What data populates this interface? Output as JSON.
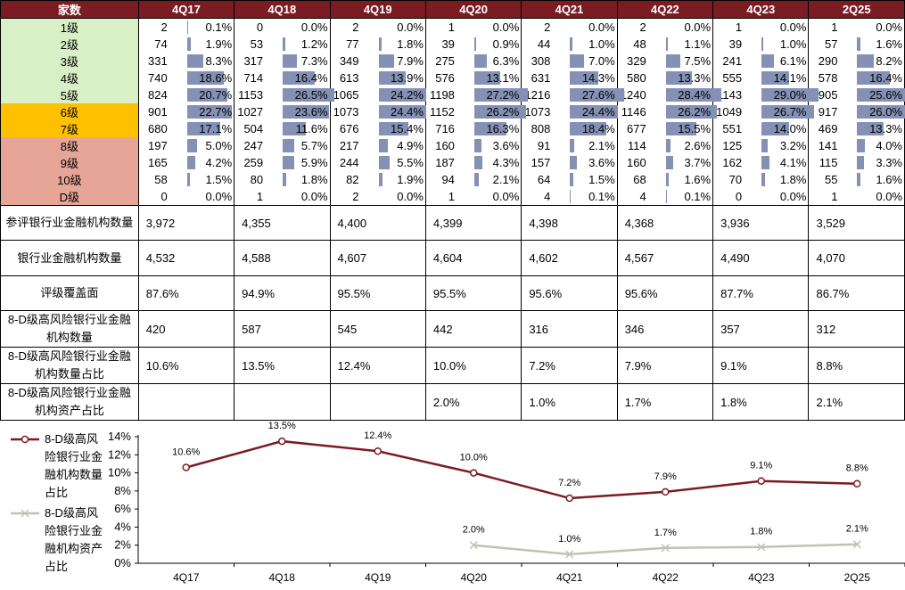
{
  "header": {
    "corner": "家数",
    "periods": [
      "4Q17",
      "4Q18",
      "4Q19",
      "4Q20",
      "4Q21",
      "4Q22",
      "4Q23",
      "2Q25"
    ]
  },
  "levels": [
    {
      "label": "1级",
      "color": "g",
      "counts": [
        2,
        0,
        2,
        1,
        2,
        2,
        1,
        1
      ],
      "pcts": [
        "0.1%",
        "0.0%",
        "0.0%",
        "0.0%",
        "0.0%",
        "0.0%",
        "0.0%",
        "0.0%"
      ],
      "fr": [
        0.1,
        0.0,
        0.0,
        0.0,
        0.0,
        0.0,
        0.0,
        0.0
      ]
    },
    {
      "label": "2级",
      "color": "g",
      "counts": [
        74,
        53,
        77,
        39,
        44,
        48,
        39,
        57
      ],
      "pcts": [
        "1.9%",
        "1.2%",
        "1.8%",
        "0.9%",
        "1.0%",
        "1.1%",
        "1.0%",
        "1.6%"
      ],
      "fr": [
        1.9,
        1.2,
        1.8,
        0.9,
        1.0,
        1.1,
        1.0,
        1.6
      ]
    },
    {
      "label": "3级",
      "color": "g",
      "counts": [
        331,
        317,
        349,
        275,
        308,
        329,
        241,
        290
      ],
      "pcts": [
        "8.3%",
        "7.3%",
        "7.9%",
        "6.3%",
        "7.0%",
        "7.5%",
        "6.1%",
        "8.2%"
      ],
      "fr": [
        8.3,
        7.3,
        7.9,
        6.3,
        7.0,
        7.5,
        6.1,
        8.2
      ]
    },
    {
      "label": "4级",
      "color": "g",
      "counts": [
        740,
        714,
        613,
        576,
        631,
        580,
        555,
        578
      ],
      "pcts": [
        "18.6%",
        "16.4%",
        "13.9%",
        "13.1%",
        "14.3%",
        "13.3%",
        "14.1%",
        "16.4%"
      ],
      "fr": [
        18.6,
        16.4,
        13.9,
        13.1,
        14.3,
        13.3,
        14.1,
        16.4
      ]
    },
    {
      "label": "5级",
      "color": "g",
      "counts": [
        824,
        1153,
        1065,
        1198,
        1216,
        1240,
        1143,
        905
      ],
      "pcts": [
        "20.7%",
        "26.5%",
        "24.2%",
        "27.2%",
        "27.6%",
        "28.4%",
        "29.0%",
        "25.6%"
      ],
      "fr": [
        20.7,
        26.5,
        24.2,
        27.2,
        27.6,
        28.4,
        29.0,
        25.6
      ]
    },
    {
      "label": "6级",
      "color": "y",
      "counts": [
        901,
        1027,
        1073,
        1152,
        1073,
        1146,
        1049,
        917
      ],
      "pcts": [
        "22.7%",
        "23.6%",
        "24.4%",
        "26.2%",
        "24.4%",
        "26.2%",
        "26.7%",
        "26.0%"
      ],
      "fr": [
        22.7,
        23.6,
        24.4,
        26.2,
        24.4,
        26.2,
        26.7,
        26.0
      ]
    },
    {
      "label": "7级",
      "color": "y",
      "counts": [
        680,
        504,
        676,
        716,
        808,
        677,
        551,
        469
      ],
      "pcts": [
        "17.1%",
        "11.6%",
        "15.4%",
        "16.3%",
        "18.4%",
        "15.5%",
        "14.0%",
        "13.3%"
      ],
      "fr": [
        17.1,
        11.6,
        15.4,
        16.3,
        18.4,
        15.5,
        14.0,
        13.3
      ]
    },
    {
      "label": "8级",
      "color": "r",
      "counts": [
        197,
        247,
        217,
        160,
        91,
        114,
        125,
        141
      ],
      "pcts": [
        "5.0%",
        "5.7%",
        "4.9%",
        "3.6%",
        "2.1%",
        "2.6%",
        "3.2%",
        "4.0%"
      ],
      "fr": [
        5.0,
        5.7,
        4.9,
        3.6,
        2.1,
        2.6,
        3.2,
        4.0
      ]
    },
    {
      "label": "9级",
      "color": "r",
      "counts": [
        165,
        259,
        244,
        187,
        157,
        160,
        162,
        115
      ],
      "pcts": [
        "4.2%",
        "5.9%",
        "5.5%",
        "4.3%",
        "3.6%",
        "3.7%",
        "4.1%",
        "3.3%"
      ],
      "fr": [
        4.2,
        5.9,
        5.5,
        4.3,
        3.6,
        3.7,
        4.1,
        3.3
      ]
    },
    {
      "label": "10级",
      "color": "r",
      "counts": [
        58,
        80,
        82,
        94,
        64,
        68,
        70,
        55
      ],
      "pcts": [
        "1.5%",
        "1.8%",
        "1.9%",
        "2.1%",
        "1.5%",
        "1.6%",
        "1.8%",
        "1.6%"
      ],
      "fr": [
        1.5,
        1.8,
        1.9,
        2.1,
        1.5,
        1.6,
        1.8,
        1.6
      ]
    },
    {
      "label": "D级",
      "color": "r",
      "counts": [
        0,
        1,
        2,
        1,
        4,
        4,
        0,
        1
      ],
      "pcts": [
        "0.0%",
        "0.0%",
        "0.0%",
        "0.0%",
        "0.1%",
        "0.1%",
        "0.0%",
        "0.0%"
      ],
      "fr": [
        0.0,
        0.0,
        0.0,
        0.0,
        0.1,
        0.1,
        0.0,
        0.0
      ]
    }
  ],
  "summary": [
    {
      "label": "参评银行业金融机构数量",
      "values": [
        "3,972",
        "4,355",
        "4,400",
        "4,399",
        "4,398",
        "4,368",
        "3,936",
        "3,529"
      ]
    },
    {
      "label": "银行业金融机构数量",
      "values": [
        "4,532",
        "4,588",
        "4,607",
        "4,604",
        "4,602",
        "4,567",
        "4,490",
        "4,070"
      ]
    },
    {
      "label": "评级覆盖面",
      "values": [
        "87.6%",
        "94.9%",
        "95.5%",
        "95.5%",
        "95.6%",
        "95.6%",
        "87.7%",
        "86.7%"
      ]
    },
    {
      "label": "8-D级高风险银行业金融机构数量",
      "values": [
        "420",
        "587",
        "545",
        "442",
        "316",
        "346",
        "357",
        "312"
      ]
    },
    {
      "label": "8-D级高风险银行业金融机构数量占比",
      "values": [
        "10.6%",
        "13.5%",
        "12.4%",
        "10.0%",
        "7.2%",
        "7.9%",
        "9.1%",
        "8.8%"
      ]
    },
    {
      "label": "8-D级高风险银行业金融机构资产占比",
      "values": [
        "",
        "",
        "",
        "2.0%",
        "1.0%",
        "1.7%",
        "1.8%",
        "2.1%"
      ]
    }
  ],
  "colors": {
    "header_bg": "#7b1b22",
    "bar": "#8591b4",
    "series1": "#7b1b22",
    "series2": "#c0c2b4"
  },
  "chart_data": {
    "type": "line",
    "categories": [
      "4Q17",
      "4Q18",
      "4Q19",
      "4Q20",
      "4Q21",
      "4Q22",
      "4Q23",
      "2Q25"
    ],
    "series": [
      {
        "name": "8-D级高风险银行业金融机构数量占比",
        "values": [
          10.6,
          13.5,
          12.4,
          10.0,
          7.2,
          7.9,
          9.1,
          8.8
        ],
        "labels": [
          "10.6%",
          "13.5%",
          "12.4%",
          "10.0%",
          "7.2%",
          "7.9%",
          "9.1%",
          "8.8%"
        ],
        "marker": "circle"
      },
      {
        "name": "8-D级高风险银行业金融机构资产占比",
        "values": [
          null,
          null,
          null,
          2.0,
          1.0,
          1.7,
          1.8,
          2.1
        ],
        "labels": [
          "",
          "",
          "",
          "2.0%",
          "1.0%",
          "1.7%",
          "1.8%",
          "2.1%"
        ],
        "marker": "x"
      }
    ],
    "yticks": [
      "0%",
      "2%",
      "4%",
      "6%",
      "8%",
      "10%",
      "12%",
      "14%"
    ],
    "ylim": [
      0,
      14
    ],
    "legend_position": "left",
    "legend_lines": [
      [
        "8-D级高风",
        "险银行业金",
        "融机构数量",
        "占比"
      ],
      [
        "8-D级高风",
        "险银行业金",
        "融机构资产",
        "占比"
      ]
    ],
    "grid": false
  }
}
